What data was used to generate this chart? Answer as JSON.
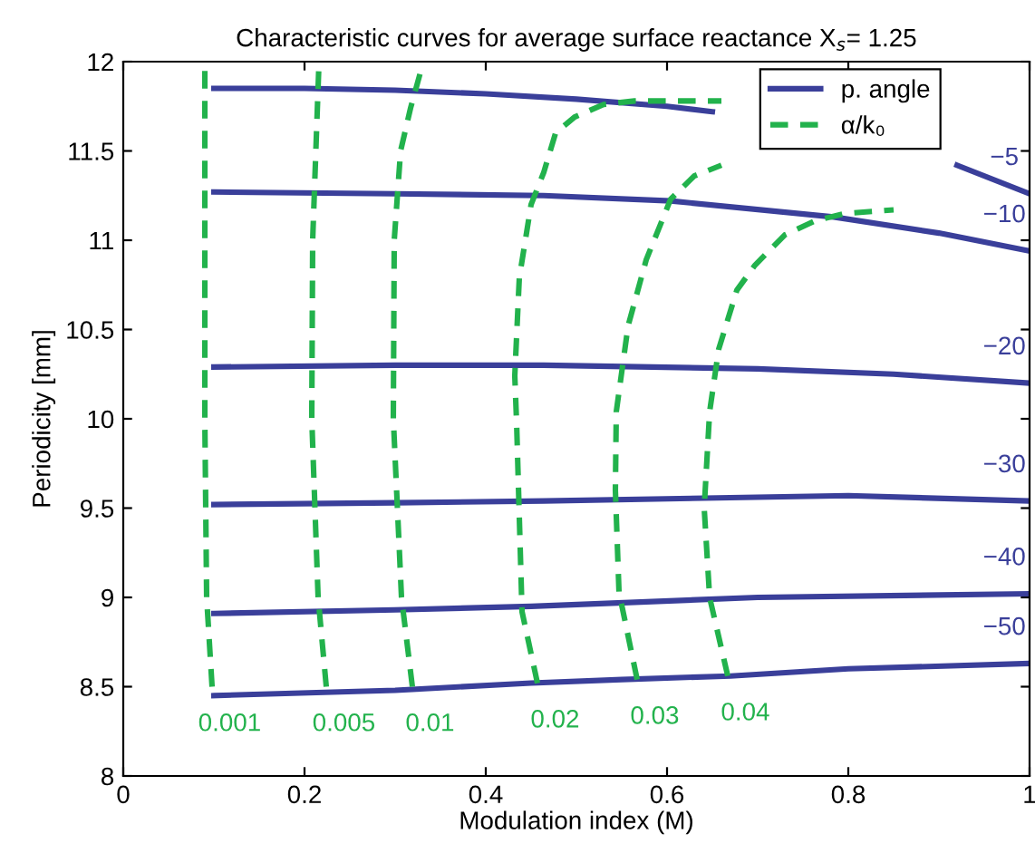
{
  "chart_data": {
    "type": "line",
    "title": "Characteristic curves for average surface reactance X$_{s}$= 1.25",
    "xlabel": "Modulation index (M)",
    "ylabel": "Periodicity [mm]",
    "xlim": [
      0,
      1
    ],
    "ylim": [
      8,
      12
    ],
    "xticks": [
      0,
      0.2,
      0.4,
      0.6,
      0.8,
      1
    ],
    "yticks": [
      8,
      8.5,
      9,
      9.5,
      10,
      10.5,
      11,
      11.5,
      12
    ],
    "grid": false,
    "legend": "top right",
    "marker": "none",
    "series": [
      {
        "name": "p. angle",
        "color": "#3a3f9a",
        "line_style": "solid",
        "x": [
          0.1,
          0.2,
          0.3,
          0.4,
          0.5,
          0.6,
          0.65,
          0.8,
          0.92,
          1.0
        ],
        "values": [
          11.85,
          11.85,
          11.84,
          11.82,
          11.79,
          11.75,
          11.72,
          null,
          11.42,
          11.26
        ]
      },
      {
        "color": "#3a3f9a",
        "line_style": "solid",
        "x": [
          0.1,
          0.3,
          0.464,
          0.604,
          0.784,
          0.9,
          1.0
        ],
        "values": [
          11.27,
          11.26,
          11.25,
          11.22,
          11.13,
          11.04,
          10.94
        ]
      },
      {
        "color": "#3a3f9a",
        "line_style": "solid",
        "x": [
          0.1,
          0.3,
          0.464,
          0.7,
          0.85,
          1.0
        ],
        "values": [
          10.29,
          10.3,
          10.3,
          10.28,
          10.25,
          10.2
        ]
      },
      {
        "color": "#3a3f9a",
        "line_style": "solid",
        "x": [
          0.1,
          0.3,
          0.464,
          0.8,
          1.0
        ],
        "values": [
          9.52,
          9.53,
          9.54,
          9.57,
          9.54
        ]
      },
      {
        "color": "#3a3f9a",
        "line_style": "solid",
        "x": [
          0.1,
          0.3,
          0.45,
          0.7,
          1.0
        ],
        "values": [
          8.91,
          8.93,
          8.95,
          9.0,
          9.02
        ]
      },
      {
        "color": "#3a3f9a",
        "line_style": "solid",
        "x": [
          0.1,
          0.3,
          0.45,
          0.55,
          0.67,
          0.8,
          1.0
        ],
        "values": [
          8.45,
          8.48,
          8.52,
          8.54,
          8.56,
          8.6,
          8.63
        ]
      },
      {
        "name": "α/k₀",
        "color": "#22b24c",
        "line_style": "dashed",
        "x": [
          0.098,
          0.092,
          0.09,
          0.09
        ],
        "values": [
          8.5,
          9.0,
          10.0,
          12.0
        ]
      },
      {
        "color": "#22b24c",
        "line_style": "dashed",
        "x": [
          0.224,
          0.215,
          0.208,
          0.209,
          0.216
        ],
        "values": [
          8.5,
          9.0,
          10.0,
          11.0,
          12.0
        ]
      },
      {
        "color": "#22b24c",
        "line_style": "dashed",
        "x": [
          0.319,
          0.307,
          0.298,
          0.299,
          0.306,
          0.317,
          0.329
        ],
        "values": [
          8.5,
          9.0,
          10.0,
          11.0,
          11.5,
          11.74,
          11.96
        ]
      },
      {
        "color": "#22b24c",
        "line_style": "dashed",
        "x": [
          0.457,
          0.44,
          0.434,
          0.432,
          0.437,
          0.45,
          0.464,
          0.477,
          0.498,
          0.53,
          0.564,
          0.66
        ],
        "values": [
          8.52,
          8.92,
          9.98,
          10.24,
          10.79,
          11.2,
          11.38,
          11.6,
          11.69,
          11.76,
          11.78,
          11.78
        ]
      },
      {
        "color": "#22b24c",
        "line_style": "dashed",
        "x": [
          0.567,
          0.547,
          0.543,
          0.544,
          0.557,
          0.577,
          0.604,
          0.63,
          0.66
        ],
        "values": [
          8.54,
          9.03,
          9.6,
          10.04,
          10.52,
          10.89,
          11.23,
          11.36,
          11.42
        ]
      },
      {
        "color": "#22b24c",
        "line_style": "dashed",
        "x": [
          0.667,
          0.647,
          0.641,
          0.647,
          0.657,
          0.677,
          0.697,
          0.73,
          0.764,
          0.797,
          0.85
        ],
        "values": [
          8.56,
          9.0,
          9.5,
          10.04,
          10.39,
          10.72,
          10.86,
          11.03,
          11.11,
          11.15,
          11.17
        ]
      }
    ],
    "annotations": [
      "−5",
      "−10",
      "−20",
      "−30",
      "−40",
      "−50",
      "0.001",
      "0.005",
      "0.01",
      "0.02",
      "0.03",
      "0.04"
    ]
  }
}
